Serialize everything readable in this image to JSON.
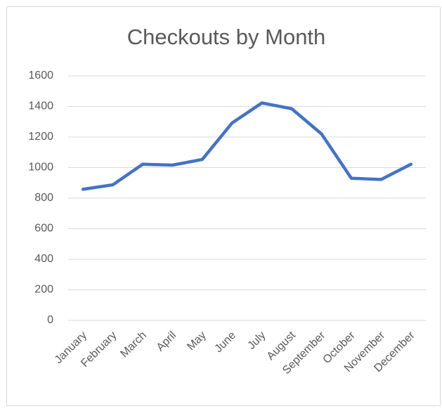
{
  "chart_data": {
    "type": "line",
    "title": "Checkouts by Month",
    "categories": [
      "January",
      "February",
      "March",
      "April",
      "May",
      "June",
      "July",
      "August",
      "September",
      "October",
      "November",
      "December"
    ],
    "series": [
      {
        "name": "Checkouts",
        "color": "#4472c4",
        "values": [
          858,
          887,
          1022,
          1016,
          1053,
          1292,
          1423,
          1385,
          1220,
          930,
          922,
          1022
        ]
      }
    ],
    "ylim": [
      0,
      1600
    ],
    "yticks": [
      0,
      200,
      400,
      600,
      800,
      1000,
      1200,
      1400,
      1600
    ],
    "grid": true
  }
}
